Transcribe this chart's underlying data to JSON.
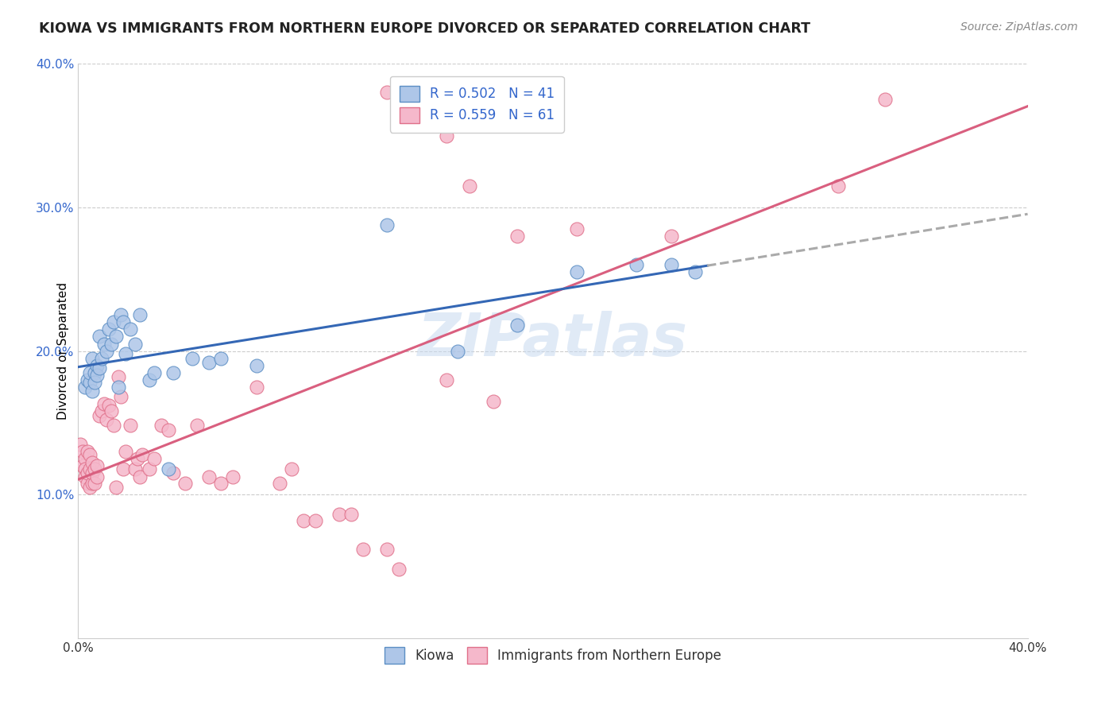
{
  "title": "KIOWA VS IMMIGRANTS FROM NORTHERN EUROPE DIVORCED OR SEPARATED CORRELATION CHART",
  "source": "Source: ZipAtlas.com",
  "ylabel": "Divorced or Separated",
  "xlim": [
    0.0,
    0.4
  ],
  "ylim": [
    0.0,
    0.4
  ],
  "kiowa_color": "#aec6e8",
  "kiowa_edge_color": "#5b8ec4",
  "immig_color": "#f5b8cb",
  "immig_edge_color": "#e0708a",
  "kiowa_line_color": "#3467b5",
  "immig_line_color": "#d95f7f",
  "kiowa_line_dash_color": "#aaaaaa",
  "watermark": "ZIPatlas",
  "kiowa_points": [
    [
      0.003,
      0.175
    ],
    [
      0.004,
      0.18
    ],
    [
      0.005,
      0.178
    ],
    [
      0.005,
      0.185
    ],
    [
      0.006,
      0.172
    ],
    [
      0.006,
      0.195
    ],
    [
      0.007,
      0.185
    ],
    [
      0.007,
      0.178
    ],
    [
      0.008,
      0.19
    ],
    [
      0.008,
      0.183
    ],
    [
      0.009,
      0.21
    ],
    [
      0.009,
      0.188
    ],
    [
      0.01,
      0.195
    ],
    [
      0.011,
      0.205
    ],
    [
      0.012,
      0.2
    ],
    [
      0.013,
      0.215
    ],
    [
      0.014,
      0.205
    ],
    [
      0.015,
      0.22
    ],
    [
      0.016,
      0.21
    ],
    [
      0.017,
      0.175
    ],
    [
      0.018,
      0.225
    ],
    [
      0.019,
      0.22
    ],
    [
      0.02,
      0.198
    ],
    [
      0.022,
      0.215
    ],
    [
      0.024,
      0.205
    ],
    [
      0.026,
      0.225
    ],
    [
      0.03,
      0.18
    ],
    [
      0.032,
      0.185
    ],
    [
      0.038,
      0.118
    ],
    [
      0.04,
      0.185
    ],
    [
      0.048,
      0.195
    ],
    [
      0.055,
      0.192
    ],
    [
      0.06,
      0.195
    ],
    [
      0.075,
      0.19
    ],
    [
      0.13,
      0.288
    ],
    [
      0.16,
      0.2
    ],
    [
      0.185,
      0.218
    ],
    [
      0.21,
      0.255
    ],
    [
      0.235,
      0.26
    ],
    [
      0.25,
      0.26
    ],
    [
      0.26,
      0.255
    ]
  ],
  "immig_points": [
    [
      0.001,
      0.135
    ],
    [
      0.002,
      0.12
    ],
    [
      0.002,
      0.13
    ],
    [
      0.003,
      0.125
    ],
    [
      0.003,
      0.118
    ],
    [
      0.003,
      0.112
    ],
    [
      0.004,
      0.108
    ],
    [
      0.004,
      0.115
    ],
    [
      0.004,
      0.13
    ],
    [
      0.005,
      0.105
    ],
    [
      0.005,
      0.118
    ],
    [
      0.005,
      0.128
    ],
    [
      0.006,
      0.108
    ],
    [
      0.006,
      0.115
    ],
    [
      0.006,
      0.122
    ],
    [
      0.007,
      0.108
    ],
    [
      0.007,
      0.118
    ],
    [
      0.008,
      0.112
    ],
    [
      0.008,
      0.12
    ],
    [
      0.009,
      0.155
    ],
    [
      0.01,
      0.158
    ],
    [
      0.011,
      0.163
    ],
    [
      0.012,
      0.152
    ],
    [
      0.013,
      0.162
    ],
    [
      0.014,
      0.158
    ],
    [
      0.015,
      0.148
    ],
    [
      0.016,
      0.105
    ],
    [
      0.017,
      0.182
    ],
    [
      0.018,
      0.168
    ],
    [
      0.019,
      0.118
    ],
    [
      0.02,
      0.13
    ],
    [
      0.022,
      0.148
    ],
    [
      0.024,
      0.118
    ],
    [
      0.025,
      0.125
    ],
    [
      0.026,
      0.112
    ],
    [
      0.027,
      0.128
    ],
    [
      0.03,
      0.118
    ],
    [
      0.032,
      0.125
    ],
    [
      0.035,
      0.148
    ],
    [
      0.038,
      0.145
    ],
    [
      0.04,
      0.115
    ],
    [
      0.045,
      0.108
    ],
    [
      0.05,
      0.148
    ],
    [
      0.055,
      0.112
    ],
    [
      0.06,
      0.108
    ],
    [
      0.065,
      0.112
    ],
    [
      0.075,
      0.175
    ],
    [
      0.085,
      0.108
    ],
    [
      0.09,
      0.118
    ],
    [
      0.095,
      0.082
    ],
    [
      0.1,
      0.082
    ],
    [
      0.11,
      0.086
    ],
    [
      0.115,
      0.086
    ],
    [
      0.12,
      0.062
    ],
    [
      0.13,
      0.062
    ],
    [
      0.135,
      0.048
    ],
    [
      0.155,
      0.18
    ],
    [
      0.175,
      0.165
    ],
    [
      0.2,
      0.37
    ],
    [
      0.25,
      0.28
    ],
    [
      0.32,
      0.315
    ],
    [
      0.34,
      0.375
    ]
  ],
  "immig_high_points": [
    [
      0.13,
      0.38
    ],
    [
      0.155,
      0.35
    ],
    [
      0.165,
      0.315
    ],
    [
      0.185,
      0.28
    ],
    [
      0.21,
      0.285
    ]
  ]
}
